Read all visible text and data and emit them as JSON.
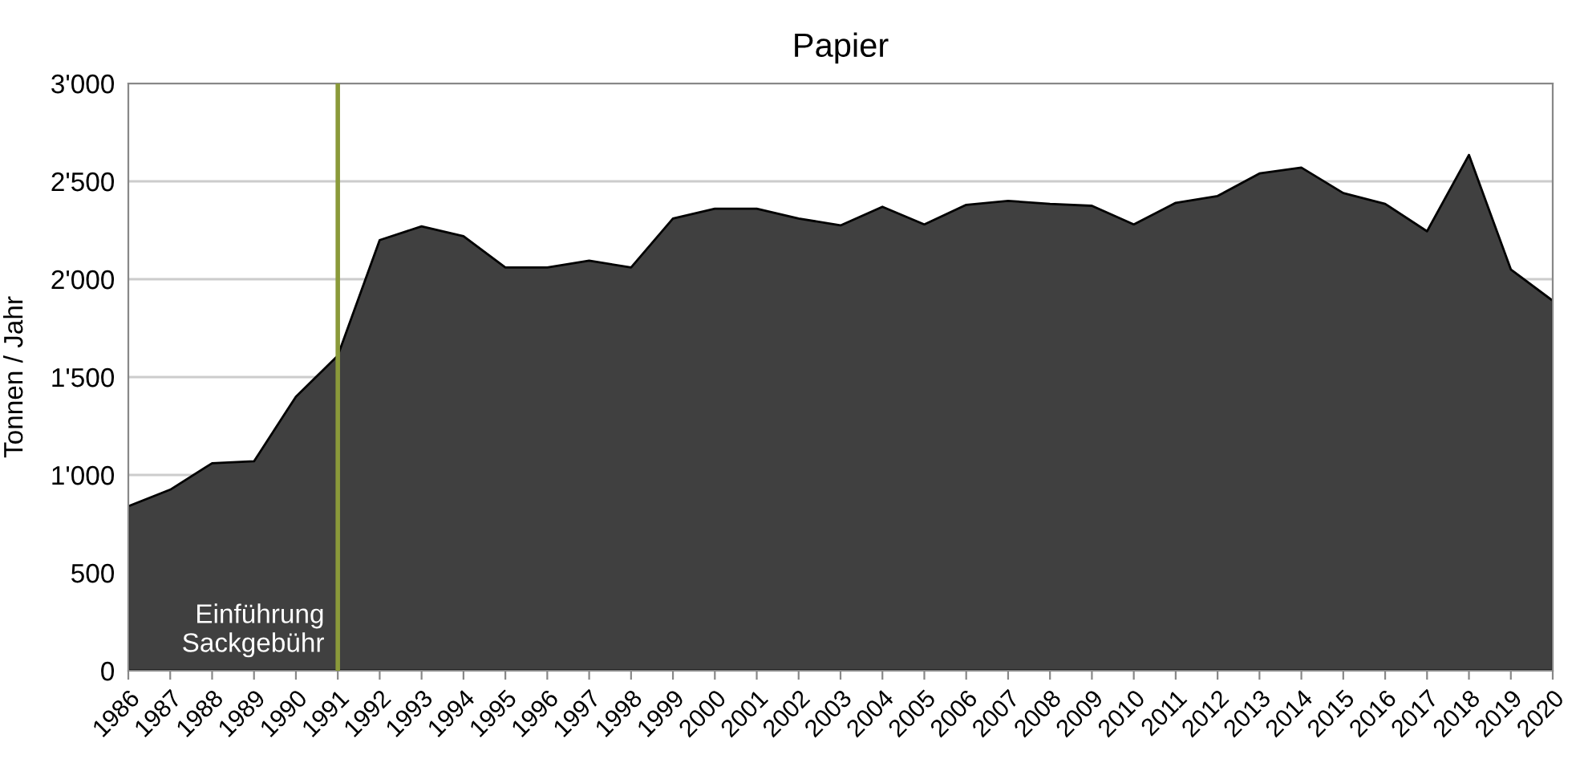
{
  "chart_data": {
    "type": "area",
    "title": "Papier",
    "ylabel": "Tonnen / Jahr",
    "x": [
      1986,
      1987,
      1988,
      1989,
      1990,
      1991,
      1992,
      1993,
      1994,
      1995,
      1996,
      1997,
      1998,
      1999,
      2000,
      2001,
      2002,
      2003,
      2004,
      2005,
      2006,
      2007,
      2008,
      2009,
      2010,
      2011,
      2012,
      2013,
      2014,
      2015,
      2016,
      2017,
      2018,
      2019,
      2020
    ],
    "series": [
      {
        "color": "#404040",
        "values": [
          840,
          925,
          1060,
          1070,
          1400,
          1610,
          2200,
          2270,
          2220,
          2060,
          2060,
          2095,
          2060,
          2310,
          2360,
          2360,
          2310,
          2275,
          2370,
          2280,
          2380,
          2400,
          2385,
          2375,
          2280,
          2390,
          2425,
          2540,
          2570,
          2440,
          2385,
          2245,
          2635,
          2050,
          1890
        ]
      }
    ],
    "xlim": [
      1986,
      2020
    ],
    "xticks": [
      1986,
      1987,
      1988,
      1989,
      1990,
      1991,
      1992,
      1993,
      1994,
      1995,
      1996,
      1997,
      1998,
      1999,
      2000,
      2001,
      2002,
      2003,
      2004,
      2005,
      2006,
      2007,
      2008,
      2009,
      2010,
      2011,
      2012,
      2013,
      2014,
      2015,
      2016,
      2017,
      2018,
      2019,
      2020
    ],
    "ylim": [
      0,
      3000
    ],
    "yticks": [
      {
        "value": 0,
        "label": "0"
      },
      {
        "value": 500,
        "label": "500"
      },
      {
        "value": 1000,
        "label": "1'000"
      },
      {
        "value": 1500,
        "label": "1'500"
      },
      {
        "value": 2000,
        "label": "2'000"
      },
      {
        "value": 2500,
        "label": "2'500"
      },
      {
        "value": 3000,
        "label": "3'000"
      }
    ],
    "grid": "y",
    "ref_lines": [
      {
        "axis": "x",
        "value": 1991,
        "label": "Einführung\nSackgebühr",
        "color": "#8a9a3a"
      }
    ]
  }
}
